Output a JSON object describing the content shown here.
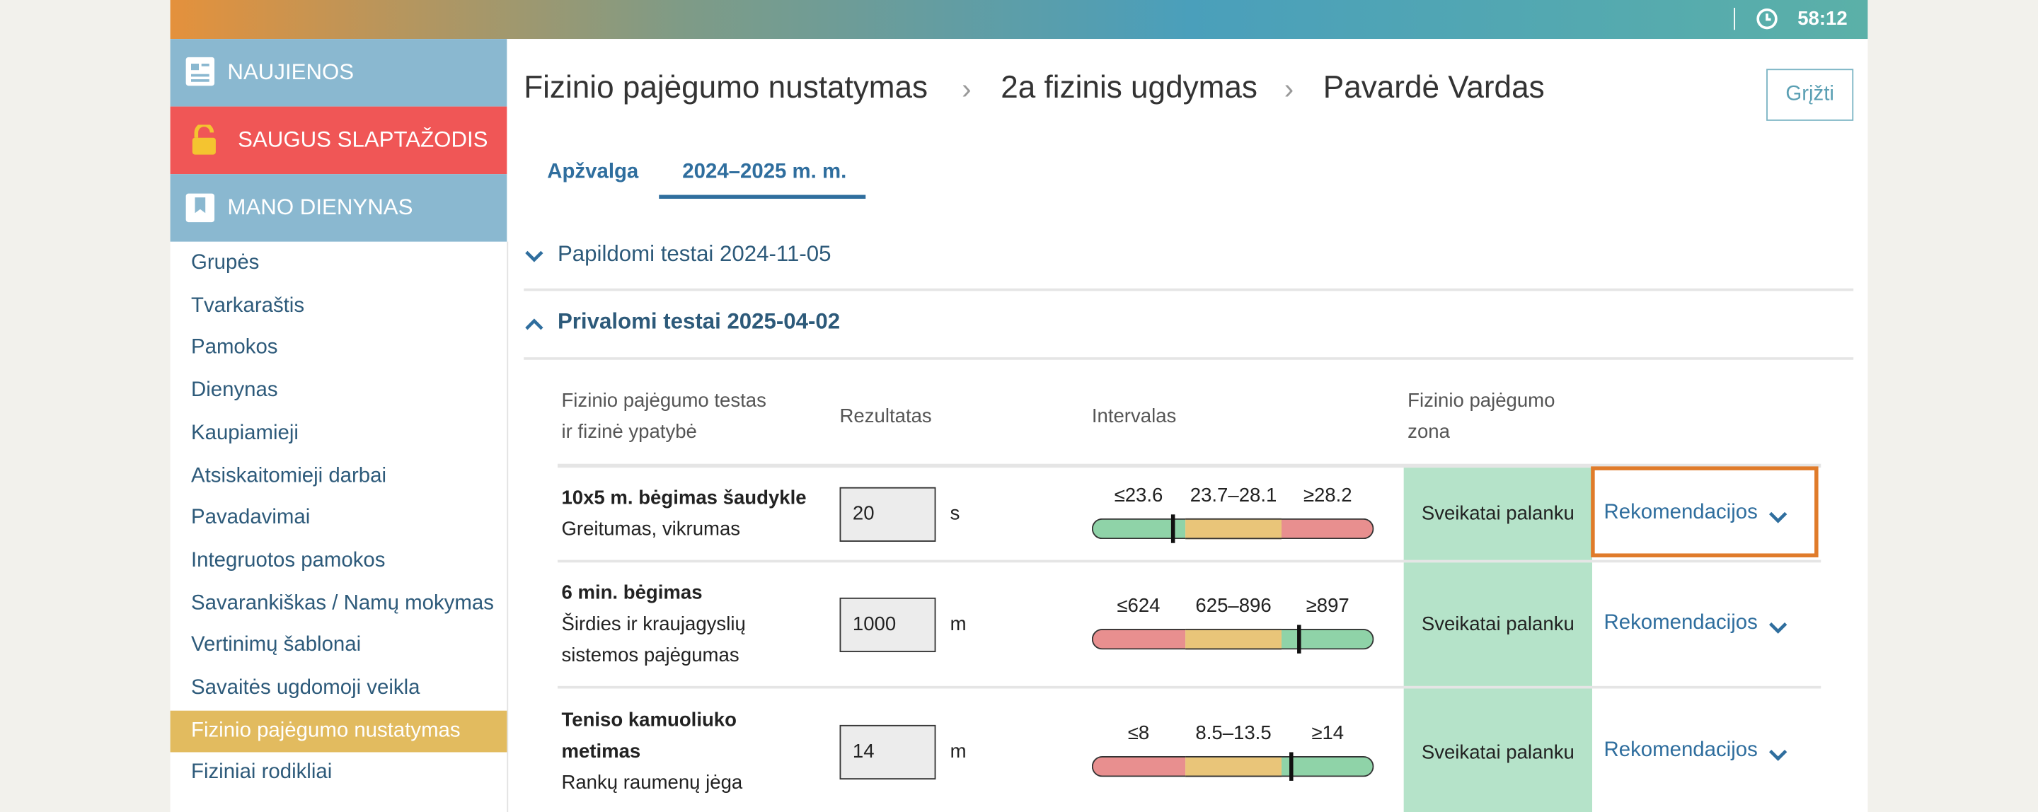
{
  "header": {
    "time": "58:12"
  },
  "sidebar": {
    "blocks": [
      "NAUJIENOS",
      "SAUGUS SLAPTAŽODIS",
      "MANO DIENYNAS"
    ],
    "items": [
      "Grupės",
      "Tvarkaraštis",
      "Pamokos",
      "Dienynas",
      "Kaupiamieji",
      "Atsiskaitomieji darbai",
      "Pavadavimai",
      "Integruotos pamokos",
      "Savarankiškas / Namų mokymas",
      "Vertinimų šablonai",
      "Savaitės ugdomoji veikla",
      "Fizinio pajėgumo nustatymas",
      "Fiziniai rodikliai"
    ],
    "active": 11
  },
  "breadcrumb": [
    "Fizinio pajėgumo nustatymas",
    "2a fizinis ugdymas",
    "Pavardė Vardas"
  ],
  "back_button": "Grįžti",
  "tabs": [
    "Apžvalga",
    "2024–2025 m. m."
  ],
  "sections": [
    "Papildomi testai 2024-11-05",
    "Privalomi testai 2025-04-02"
  ],
  "table": {
    "headers": [
      [
        "Fizinio pajėgumo testas",
        "ir fizinė ypatybė"
      ],
      [
        "Rezultatas"
      ],
      [
        "Intervalas"
      ],
      [
        "Fizinio pajėgumo",
        "zona"
      ]
    ],
    "rows": [
      {
        "name": "10x5 m. bėgimas šaudykle",
        "quality": [
          "Greitumas, vikrumas"
        ],
        "result": "20",
        "unit": "s",
        "segments": [
          {
            "label": "≤23.6",
            "color": "#8fd3a8"
          },
          {
            "label": "23.7–28.1",
            "color": "#e9c579"
          },
          {
            "label": "≥28.2",
            "color": "#e88f8f"
          }
        ],
        "zone": "Sveikatai palanku",
        "link": "Rekomendacijos"
      },
      {
        "name": "6 min. bėgimas",
        "quality": [
          "Širdies ir kraujagyslių",
          "sistemos pajėgumas"
        ],
        "result": "1000",
        "unit": "m",
        "segments": [
          {
            "label": "≤624",
            "color": "#e88f8f"
          },
          {
            "label": "625–896",
            "color": "#e9c579"
          },
          {
            "label": "≥897",
            "color": "#8fd3a8"
          }
        ],
        "zone": "Sveikatai palanku",
        "link": "Rekomendacijos"
      },
      {
        "name": "Teniso kamuoliuko metimas",
        "quality": [
          "Rankų raumenų jėga"
        ],
        "result": "14",
        "unit": "m",
        "segments": [
          {
            "label": "≤8",
            "color": "#e88f8f"
          },
          {
            "label": "8.5–13.5",
            "color": "#e9c579"
          },
          {
            "label": "≥14",
            "color": "#8fd3a8"
          }
        ],
        "zone": "Sveikatai palanku",
        "link": "Rekomendacijos"
      }
    ]
  }
}
